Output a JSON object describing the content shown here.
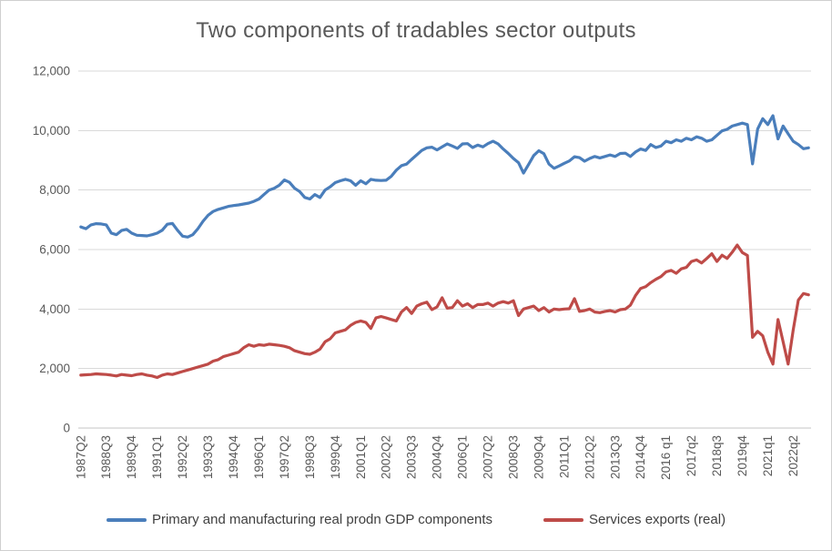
{
  "chart_data": {
    "type": "line",
    "title": "Two components of tradables sector outputs",
    "xlabel": "",
    "ylabel": "",
    "x_start": "1987Q2",
    "x_end": "2023Q1",
    "frequency": "quarterly",
    "x_ticks_every": 5,
    "x_tick_labels": [
      "1987Q2",
      "1988Q3",
      "1989Q4",
      "1991Q1",
      "1992Q2",
      "1993Q3",
      "1994Q4",
      "1996Q1",
      "1997Q2",
      "1998Q3",
      "1999Q4",
      "2001Q1",
      "2002Q2",
      "2003Q3",
      "2004Q4",
      "2006Q1",
      "2007Q2",
      "2008Q3",
      "2009Q4",
      "2011Q1",
      "2012Q2",
      "2013Q3",
      "2014Q4",
      "2016 q1",
      "2017q2",
      "2018q3",
      "2019q4",
      "2021q1",
      "2022q2"
    ],
    "y_ticks": [
      "0",
      "2,000",
      "4,000",
      "6,000",
      "8,000",
      "10,000",
      "12,000"
    ],
    "y_axis_range": [
      0,
      12000
    ],
    "grid": "horizontal",
    "legend_position": "bottom",
    "series": [
      {
        "name": "Primary and manufacturing real prodn GDP components",
        "color": "#4A7EBB",
        "values": [
          6760,
          6700,
          6830,
          6870,
          6860,
          6830,
          6550,
          6500,
          6640,
          6680,
          6550,
          6480,
          6470,
          6460,
          6500,
          6550,
          6650,
          6850,
          6880,
          6650,
          6450,
          6420,
          6500,
          6700,
          6950,
          7150,
          7280,
          7350,
          7400,
          7450,
          7480,
          7500,
          7530,
          7560,
          7620,
          7700,
          7850,
          8000,
          8060,
          8160,
          8340,
          8260,
          8060,
          7950,
          7750,
          7700,
          7850,
          7750,
          8000,
          8110,
          8250,
          8310,
          8360,
          8310,
          8160,
          8310,
          8210,
          8360,
          8330,
          8320,
          8330,
          8460,
          8670,
          8820,
          8870,
          9030,
          9180,
          9330,
          9420,
          9440,
          9350,
          9450,
          9550,
          9480,
          9400,
          9550,
          9560,
          9430,
          9510,
          9450,
          9560,
          9640,
          9550,
          9380,
          9230,
          9060,
          8920,
          8570,
          8860,
          9160,
          9320,
          9220,
          8870,
          8730,
          8810,
          8900,
          8980,
          9120,
          9090,
          8970,
          9060,
          9130,
          9080,
          9130,
          9180,
          9130,
          9230,
          9240,
          9130,
          9280,
          9380,
          9330,
          9530,
          9430,
          9480,
          9640,
          9590,
          9690,
          9640,
          9740,
          9690,
          9790,
          9740,
          9640,
          9690,
          9840,
          9990,
          10040,
          10150,
          10200,
          10250,
          10200,
          8880,
          10050,
          10400,
          10200,
          10500,
          9720,
          10150,
          9890,
          9640,
          9530,
          9390,
          9420
        ]
      },
      {
        "name": "Services exports (real)",
        "color": "#BE4B48",
        "values": [
          1780,
          1790,
          1800,
          1820,
          1810,
          1800,
          1780,
          1750,
          1800,
          1780,
          1760,
          1800,
          1820,
          1780,
          1750,
          1700,
          1780,
          1820,
          1800,
          1850,
          1900,
          1950,
          2000,
          2050,
          2100,
          2150,
          2250,
          2300,
          2400,
          2450,
          2500,
          2550,
          2700,
          2800,
          2750,
          2800,
          2780,
          2820,
          2800,
          2780,
          2750,
          2700,
          2600,
          2550,
          2500,
          2480,
          2550,
          2650,
          2900,
          3000,
          3200,
          3250,
          3300,
          3450,
          3550,
          3600,
          3550,
          3350,
          3700,
          3750,
          3700,
          3650,
          3600,
          3900,
          4050,
          3850,
          4100,
          4180,
          4230,
          3980,
          4070,
          4380,
          4030,
          4050,
          4280,
          4100,
          4180,
          4050,
          4150,
          4150,
          4200,
          4100,
          4200,
          4250,
          4200,
          4280,
          3780,
          4000,
          4050,
          4100,
          3950,
          4050,
          3900,
          4000,
          3980,
          4000,
          4010,
          4350,
          3920,
          3950,
          4000,
          3900,
          3880,
          3920,
          3950,
          3900,
          3980,
          4000,
          4130,
          4450,
          4690,
          4750,
          4890,
          5000,
          5090,
          5250,
          5300,
          5200,
          5350,
          5400,
          5600,
          5650,
          5550,
          5700,
          5860,
          5600,
          5810,
          5700,
          5910,
          6150,
          5900,
          5800,
          3050,
          3250,
          3100,
          2550,
          2150,
          3650,
          2900,
          2150,
          3300,
          4300,
          4520,
          4480
        ]
      }
    ]
  }
}
